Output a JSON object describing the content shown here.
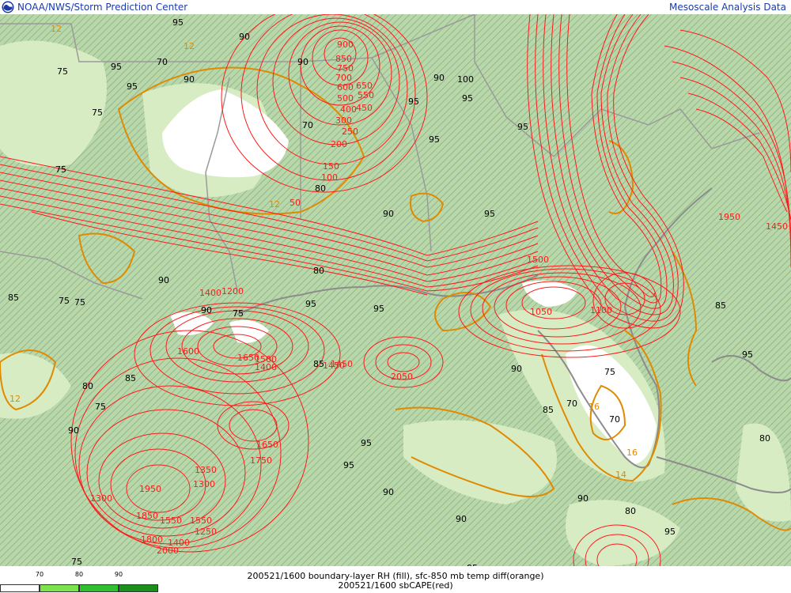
{
  "header": {
    "left_title": "NOAA/NWS/Storm Prediction Center",
    "right_title": "Mesoscale Analysis Data"
  },
  "colors": {
    "link_blue": "#1a3aa8",
    "rh_fill_low": "#cfe6b8",
    "rh_fill_high": "#b9d8a8",
    "rh_hatch": "#5a7a7a",
    "temp_diff_contour": "#e08a00",
    "cape_contour": "#ff0000",
    "boundary": "#9a9a9a"
  },
  "legend": {
    "ticks": [
      "70",
      "80",
      "90"
    ],
    "swatches": [
      "#ffffff",
      "#7be34b",
      "#2fbf2f",
      "#1b8f1b"
    ]
  },
  "caption": {
    "line1": "200521/1600 boundary-layer RH (fill), sfc-850 mb temp diff(orange)",
    "line2": "200521/1600 sbCAPE(red)"
  },
  "map_labels": {
    "rh": [
      "95",
      "90",
      "70",
      "95",
      "75",
      "95",
      "90",
      "100",
      "90",
      "95",
      "95",
      "95",
      "95",
      "90",
      "75",
      "80",
      "70",
      "75",
      "90",
      "95",
      "80",
      "90",
      "95",
      "75",
      "85",
      "75",
      "95",
      "90",
      "75",
      "85",
      "85",
      "80",
      "75",
      "85",
      "90",
      "95",
      "95",
      "70",
      "70",
      "75",
      "80",
      "90",
      "95",
      "90",
      "90",
      "95",
      "85",
      "90",
      "95",
      "80",
      "75"
    ],
    "temp_diff": [
      "12",
      "12",
      "14",
      "16",
      "16",
      "12",
      "12"
    ],
    "cape": [
      "900",
      "850",
      "750",
      "700",
      "650",
      "600",
      "550",
      "500",
      "450",
      "400",
      "300",
      "250",
      "200",
      "150",
      "100",
      "50",
      "1600",
      "1650",
      "1500",
      "1400",
      "1450",
      "1350",
      "1300",
      "1950",
      "1550",
      "1050",
      "1100",
      "1200",
      "1400",
      "1650",
      "1450",
      "2050",
      "1750",
      "1300",
      "1250",
      "1500",
      "1800",
      "1400",
      "2000",
      "1550",
      "1850",
      "1950",
      "1450"
    ]
  }
}
